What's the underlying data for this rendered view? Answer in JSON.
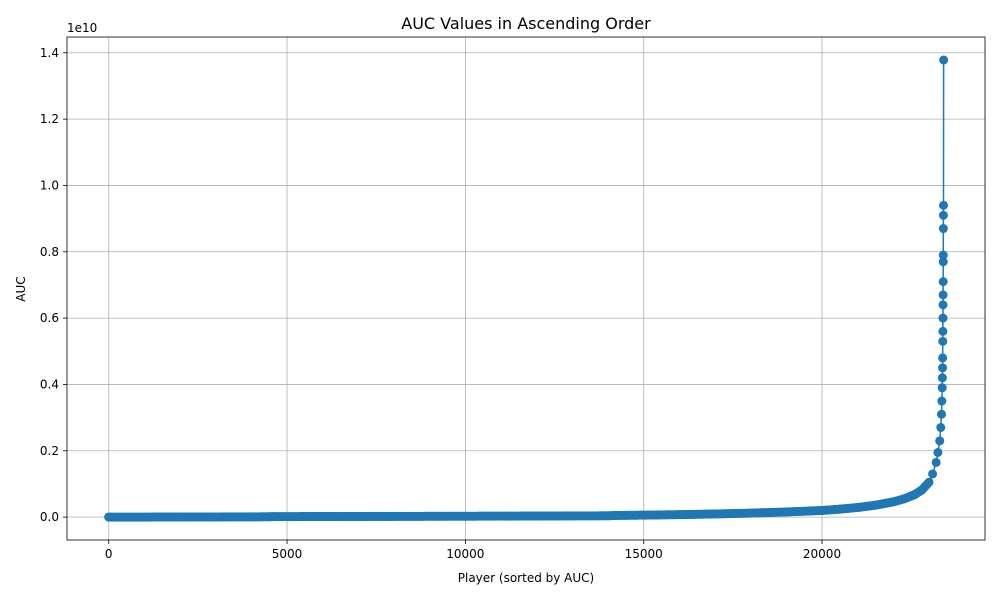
{
  "chart_data": {
    "type": "line",
    "title": "AUC Values in Ascending Order",
    "xlabel": "Player (sorted by AUC)",
    "ylabel": "AUC",
    "y_offset_label": "1e10",
    "xlim": [
      -1170,
      24570
    ],
    "ylim": [
      -690000000.0,
      14475000000.0
    ],
    "x_ticks": [
      0,
      5000,
      10000,
      15000,
      20000
    ],
    "x_tick_labels": [
      "0",
      "5000",
      "10000",
      "15000",
      "20000"
    ],
    "y_ticks": [
      0,
      2000000000.0,
      4000000000.0,
      6000000000.0,
      8000000000.0,
      10000000000.0,
      12000000000.0,
      14000000000.0
    ],
    "y_tick_labels": [
      "0.0",
      "0.2",
      "0.4",
      "0.6",
      "0.8",
      "1.0",
      "1.2",
      "1.4"
    ],
    "grid": true,
    "marker": "circle",
    "color": "#1f77b4",
    "series": [
      {
        "points": [
          [
            0,
            0
          ],
          [
            1000,
            1000000.0
          ],
          [
            2000,
            3000000.0
          ],
          [
            3000,
            5000000.0
          ],
          [
            4000,
            8000000.0
          ],
          [
            4500,
            10000000.0
          ],
          [
            4600,
            15000000.0
          ],
          [
            6000,
            18000000.0
          ],
          [
            8000,
            22000000.0
          ],
          [
            10000,
            27000000.0
          ],
          [
            12000,
            33000000.0
          ],
          [
            14000,
            40000000.0
          ],
          [
            14200,
            50000000.0
          ],
          [
            15000,
            60000000.0
          ],
          [
            16000,
            75000000.0
          ],
          [
            17000,
            95000000.0
          ],
          [
            18000,
            120000000.0
          ],
          [
            19000,
            155000000.0
          ],
          [
            20000,
            200000000.0
          ],
          [
            20500,
            240000000.0
          ],
          [
            21000,
            290000000.0
          ],
          [
            21500,
            360000000.0
          ],
          [
            22000,
            460000000.0
          ],
          [
            22300,
            550000000.0
          ],
          [
            22600,
            680000000.0
          ],
          [
            22800,
            820000000.0
          ],
          [
            23000,
            1050000000.0
          ],
          [
            23100,
            1300000000.0
          ],
          [
            23200,
            1650000000.0
          ],
          [
            23250,
            1950000000.0
          ],
          [
            23300,
            2300000000.0
          ],
          [
            23330,
            2700000000.0
          ],
          [
            23350,
            3100000000.0
          ],
          [
            23360,
            3500000000.0
          ],
          [
            23370,
            3900000000.0
          ],
          [
            23375,
            4200000000.0
          ],
          [
            23380,
            4500000000.0
          ],
          [
            23383,
            4800000000.0
          ],
          [
            23386,
            5300000000.0
          ],
          [
            23389,
            5600000000.0
          ],
          [
            23391,
            6000000000.0
          ],
          [
            23393,
            6400000000.0
          ],
          [
            23395,
            6700000000.0
          ],
          [
            23397,
            7100000000.0
          ],
          [
            23399,
            7700000000.0
          ],
          [
            23400,
            7900000000.0
          ],
          [
            23402,
            8700000000.0
          ],
          [
            23404,
            9100000000.0
          ],
          [
            23406,
            9400000000.0
          ],
          [
            23410,
            13780000000.0
          ]
        ]
      }
    ]
  }
}
